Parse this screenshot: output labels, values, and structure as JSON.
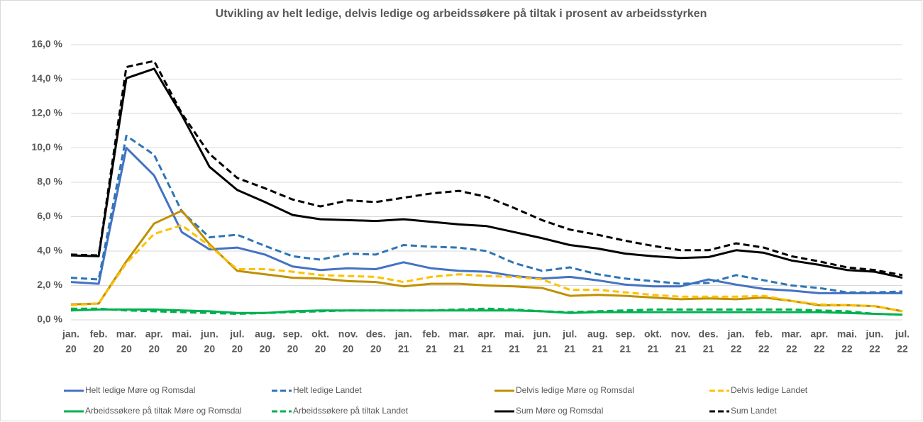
{
  "chart_data": {
    "type": "line",
    "title": "Utvikling av helt ledige, delvis ledige og arbeidssøkere på tiltak i prosent av arbeidsstyrken",
    "categories": [
      [
        "jan.",
        "20"
      ],
      [
        "feb.",
        "20"
      ],
      [
        "mar.",
        "20"
      ],
      [
        "apr.",
        "20"
      ],
      [
        "mai.",
        "20"
      ],
      [
        "jun.",
        "20"
      ],
      [
        "jul.",
        "20"
      ],
      [
        "aug.",
        "20"
      ],
      [
        "sep.",
        "20"
      ],
      [
        "okt.",
        "20"
      ],
      [
        "nov.",
        "20"
      ],
      [
        "des.",
        "20"
      ],
      [
        "jan.",
        "21"
      ],
      [
        "feb.",
        "21"
      ],
      [
        "mar.",
        "21"
      ],
      [
        "apr.",
        "21"
      ],
      [
        "mai.",
        "21"
      ],
      [
        "jun.",
        "21"
      ],
      [
        "jul.",
        "21"
      ],
      [
        "aug.",
        "21"
      ],
      [
        "sep.",
        "21"
      ],
      [
        "okt.",
        "21"
      ],
      [
        "nov.",
        "21"
      ],
      [
        "des.",
        "21"
      ],
      [
        "jan.",
        "22"
      ],
      [
        "feb.",
        "22"
      ],
      [
        "mar.",
        "22"
      ],
      [
        "apr.",
        "22"
      ],
      [
        "mai.",
        "22"
      ],
      [
        "jun.",
        "22"
      ],
      [
        "jul.",
        "22"
      ]
    ],
    "ylim": [
      0,
      16
    ],
    "yticks": [
      {
        "value": 0,
        "label": "0,0 %"
      },
      {
        "value": 2,
        "label": "2,0 %"
      },
      {
        "value": 4,
        "label": "4,0 %"
      },
      {
        "value": 6,
        "label": "6,0 %"
      },
      {
        "value": 8,
        "label": "8,0 %"
      },
      {
        "value": 10,
        "label": "10,0 %"
      },
      {
        "value": 12,
        "label": "12,0 %"
      },
      {
        "value": 14,
        "label": "14,0 %"
      },
      {
        "value": 16,
        "label": "16,0 %"
      }
    ],
    "grid": true,
    "legend": "bottom",
    "series": [
      {
        "name": "Helt ledige Møre og Romsdal",
        "color": "#4472c4",
        "dashed": false,
        "values": [
          2.2,
          2.1,
          10.0,
          8.4,
          5.1,
          4.1,
          4.2,
          3.8,
          3.1,
          2.9,
          3.0,
          2.95,
          3.35,
          3.0,
          2.85,
          2.8,
          2.55,
          2.4,
          2.5,
          2.3,
          2.05,
          1.95,
          1.95,
          2.35,
          2.05,
          1.8,
          1.7,
          1.55,
          1.55,
          1.55,
          1.55
        ]
      },
      {
        "name": "Helt ledige Landet",
        "color": "#2e75b6",
        "dashed": true,
        "values": [
          2.45,
          2.35,
          10.7,
          9.6,
          6.3,
          4.8,
          4.95,
          4.3,
          3.7,
          3.5,
          3.85,
          3.8,
          4.35,
          4.25,
          4.2,
          4.0,
          3.3,
          2.85,
          3.05,
          2.65,
          2.4,
          2.25,
          2.1,
          2.15,
          2.6,
          2.3,
          2.0,
          1.85,
          1.6,
          1.6,
          1.65
        ]
      },
      {
        "name": "Delvis ledige Møre og Romsdal",
        "color": "#bf9000",
        "dashed": false,
        "values": [
          0.9,
          0.95,
          3.4,
          5.6,
          6.35,
          4.4,
          2.85,
          2.65,
          2.45,
          2.4,
          2.25,
          2.2,
          1.95,
          2.1,
          2.1,
          2.0,
          1.95,
          1.85,
          1.4,
          1.45,
          1.4,
          1.3,
          1.2,
          1.25,
          1.2,
          1.3,
          1.1,
          0.85,
          0.85,
          0.8,
          0.5
        ]
      },
      {
        "name": "Delvis ledige Landet",
        "color": "#ffc000",
        "dashed": true,
        "values": [
          0.85,
          0.95,
          3.3,
          5.0,
          5.5,
          4.3,
          2.95,
          2.95,
          2.8,
          2.6,
          2.55,
          2.5,
          2.2,
          2.5,
          2.65,
          2.55,
          2.5,
          2.35,
          1.75,
          1.75,
          1.6,
          1.45,
          1.35,
          1.35,
          1.35,
          1.4,
          1.1,
          0.9,
          0.85,
          0.8,
          0.5
        ]
      },
      {
        "name": "Arbeidssøkere på tiltak Møre og Romsdal",
        "color": "#00b050",
        "dashed": false,
        "values": [
          0.55,
          0.6,
          0.6,
          0.6,
          0.55,
          0.5,
          0.4,
          0.4,
          0.5,
          0.55,
          0.55,
          0.55,
          0.55,
          0.55,
          0.55,
          0.55,
          0.55,
          0.5,
          0.4,
          0.45,
          0.45,
          0.45,
          0.45,
          0.45,
          0.45,
          0.45,
          0.45,
          0.45,
          0.4,
          0.35,
          0.3
        ]
      },
      {
        "name": "Arbeidssøkere på tiltak Landet",
        "color": "#00b050",
        "dashed": true,
        "values": [
          0.65,
          0.65,
          0.55,
          0.5,
          0.45,
          0.4,
          0.35,
          0.4,
          0.45,
          0.5,
          0.55,
          0.55,
          0.55,
          0.55,
          0.6,
          0.65,
          0.6,
          0.5,
          0.45,
          0.5,
          0.55,
          0.6,
          0.6,
          0.6,
          0.6,
          0.6,
          0.6,
          0.55,
          0.5,
          0.35,
          0.3
        ]
      },
      {
        "name": "Sum Møre og Romsdal",
        "color": "#000000",
        "dashed": false,
        "values": [
          3.75,
          3.7,
          14.05,
          14.6,
          11.9,
          8.9,
          7.55,
          6.85,
          6.1,
          5.85,
          5.8,
          5.75,
          5.85,
          5.7,
          5.55,
          5.45,
          5.1,
          4.75,
          4.35,
          4.15,
          3.85,
          3.7,
          3.6,
          3.65,
          4.05,
          3.9,
          3.45,
          3.2,
          2.9,
          2.8,
          2.45
        ]
      },
      {
        "name": "Sum Landet",
        "color": "#000000",
        "dashed": true,
        "values": [
          3.8,
          3.75,
          14.7,
          15.05,
          12.0,
          9.65,
          8.25,
          7.65,
          7.0,
          6.6,
          6.95,
          6.85,
          7.1,
          7.35,
          7.5,
          7.15,
          6.5,
          5.8,
          5.25,
          4.95,
          4.6,
          4.3,
          4.05,
          4.05,
          4.45,
          4.2,
          3.7,
          3.4,
          3.05,
          2.9,
          2.6
        ]
      }
    ]
  }
}
